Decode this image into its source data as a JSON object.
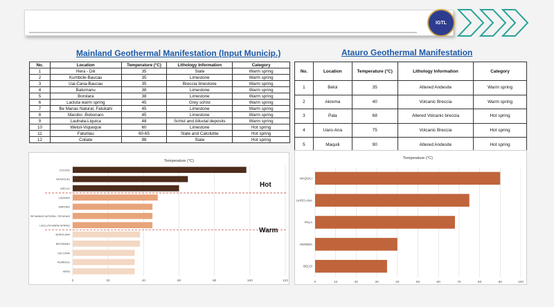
{
  "branding": {
    "logo_text": "IGTL"
  },
  "mainland": {
    "title": "Mainland Geothermal  Manifestation (Input Municip.)",
    "headers": [
      "No.",
      "Location",
      "Temperature (°C)",
      "Lithology Information",
      "Category"
    ],
    "rows": [
      [
        "1",
        "Hera - Dili",
        "35",
        "Slate",
        "Warm spring"
      ],
      [
        "2",
        "Kumbole-Baucau",
        "35",
        "Limestone",
        "Warm spring"
      ],
      [
        "3",
        "Uai-Cana-Baucau",
        "35",
        "Breccia limestone",
        "Warm spring"
      ],
      [
        "4",
        "Batumanu",
        "38",
        "Limestone",
        "Warm spring"
      ],
      [
        "5",
        "Borolara",
        "38",
        "Limestone",
        "Warm spring"
      ],
      [
        "6",
        "Lacluta warm spring",
        "45",
        "Grey schist",
        "Warm spring"
      ],
      [
        "7",
        "Be Manas Natural, Fatukahi",
        "45",
        "Limestone",
        "Warm spring"
      ],
      [
        "8",
        "Marobo -Bobonaro",
        "45",
        "Limestone",
        "Warm spring"
      ],
      [
        "9",
        "Lauhata-Liquica",
        "48",
        "Schist and Alluvial deposits",
        "Warm spring"
      ],
      [
        "10",
        "Weluli-Viqueque",
        "60",
        "Limestone",
        "Hot spring"
      ],
      [
        "11",
        "Faturilau",
        "60-65",
        "Slate and Calcilutite",
        "Hot spring"
      ],
      [
        "12",
        "Coliate",
        "98",
        "Slate",
        "Hot spring"
      ]
    ]
  },
  "atauro": {
    "title": "Atauro Geothermal  Manifestation",
    "headers": [
      "No.",
      "Location",
      "Temperature (°C)",
      "Lithology Information",
      "Category"
    ],
    "rows": [
      [
        "1",
        "Beloi",
        "35",
        "Altered Andesite",
        "Warm spring"
      ],
      [
        "2",
        "Akrema",
        "40",
        "Volcanic Breccia",
        "Warm spring"
      ],
      [
        "3",
        "Pala",
        "68",
        "Altered Volcanic breccia",
        "Hot spring"
      ],
      [
        "4",
        "Uaro-Ana",
        "75",
        "Volcanic Breccia",
        "Hot spring"
      ],
      [
        "5",
        "Maquili",
        "90",
        "Altered Andesite",
        "Hot spring"
      ]
    ]
  },
  "annotations": {
    "hot": "Hot",
    "warm": "Warm"
  },
  "chart_data": [
    {
      "type": "bar",
      "orientation": "horizontal",
      "title": "Temperature (°C)",
      "categories": [
        "COLIATE",
        "FATURILAU",
        "WELULI",
        "LAUHATA",
        "MAROBO",
        "BE MANAS NATURAL, FATUKAHI",
        "LACLUTA WARM SPRING",
        "BOROLARA",
        "BATUMANU",
        "UAI-CANA",
        "KUMBOLE",
        "HERA"
      ],
      "values": [
        98,
        65,
        60,
        48,
        45,
        45,
        45,
        38,
        38,
        35,
        35,
        35
      ],
      "colors": [
        "#4d2c1c",
        "#4d2c1c",
        "#4d2c1c",
        "#e8a47a",
        "#e8a47a",
        "#e8a47a",
        "#e8a47a",
        "#f3d8c4",
        "#f3d8c4",
        "#f3d8c4",
        "#f3d8c4",
        "#f3d8c4"
      ],
      "xlim": [
        0,
        120
      ],
      "xticks": [
        "0",
        "20",
        "40",
        "60",
        "80",
        "100",
        "120"
      ],
      "grid": true
    },
    {
      "type": "bar",
      "orientation": "horizontal",
      "title": "Temperature (°C)",
      "categories": [
        "MAQUILI",
        "UARO-ANA",
        "PALA",
        "AKREMA",
        "BELOI"
      ],
      "values": [
        90,
        75,
        68,
        40,
        35
      ],
      "colors": [
        "#c0643b",
        "#c0643b",
        "#c0643b",
        "#c0643b",
        "#c0643b"
      ],
      "xlim": [
        0,
        100
      ],
      "xticks": [
        "0",
        "10",
        "20",
        "30",
        "40",
        "50",
        "60",
        "70",
        "80",
        "90",
        "100"
      ],
      "grid": true
    }
  ]
}
